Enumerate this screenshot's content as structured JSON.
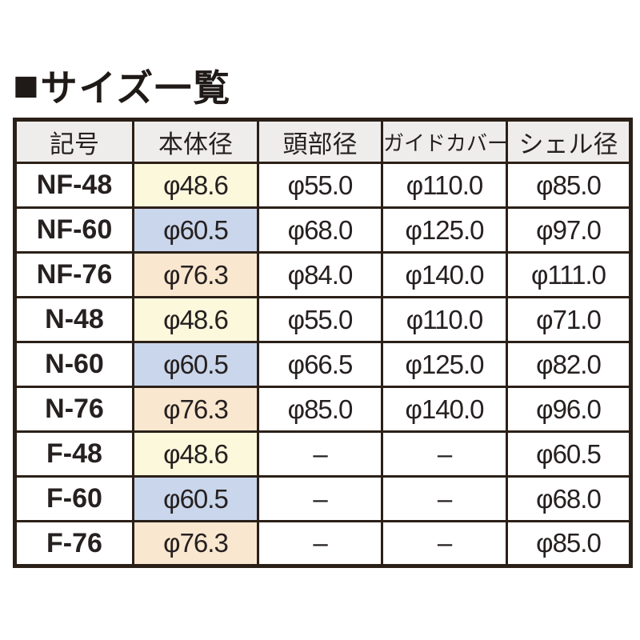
{
  "title": {
    "marker": "■",
    "text": "サイズ一覧"
  },
  "table": {
    "palette": {
      "border": "#2b2018",
      "header_bg": "#eeedeb",
      "text": "#262020",
      "highlight_48_yellow": "#fbf8dc",
      "highlight_60_blue": "#c9d6eb",
      "highlight_76_peach": "#f9e7cf"
    },
    "columns": [
      "記号",
      "本体径",
      "頭部径",
      "ガイドカバー",
      "シェル径"
    ],
    "rows": [
      {
        "symbol": "NF-48",
        "body": "φ48.6",
        "body_bg": "#fbf8dc",
        "head": "φ55.0",
        "guide": "φ110.0",
        "shell": "φ85.0"
      },
      {
        "symbol": "NF-60",
        "body": "φ60.5",
        "body_bg": "#c9d6eb",
        "head": "φ68.0",
        "guide": "φ125.0",
        "shell": "φ97.0"
      },
      {
        "symbol": "NF-76",
        "body": "φ76.3",
        "body_bg": "#f9e7cf",
        "head": "φ84.0",
        "guide": "φ140.0",
        "shell": "φ111.0"
      },
      {
        "symbol": "N-48",
        "body": "φ48.6",
        "body_bg": "#fbf8dc",
        "head": "φ55.0",
        "guide": "φ110.0",
        "shell": "φ71.0"
      },
      {
        "symbol": "N-60",
        "body": "φ60.5",
        "body_bg": "#c9d6eb",
        "head": "φ66.5",
        "guide": "φ125.0",
        "shell": "φ82.0"
      },
      {
        "symbol": "N-76",
        "body": "φ76.3",
        "body_bg": "#f9e7cf",
        "head": "φ85.0",
        "guide": "φ140.0",
        "shell": "φ96.0"
      },
      {
        "symbol": "F-48",
        "body": "φ48.6",
        "body_bg": "#fbf8dc",
        "head": "–",
        "guide": "–",
        "shell": "φ60.5"
      },
      {
        "symbol": "F-60",
        "body": "φ60.5",
        "body_bg": "#c9d6eb",
        "head": "–",
        "guide": "–",
        "shell": "φ68.0"
      },
      {
        "symbol": "F-76",
        "body": "φ76.3",
        "body_bg": "#f9e7cf",
        "head": "–",
        "guide": "–",
        "shell": "φ85.0"
      }
    ]
  }
}
